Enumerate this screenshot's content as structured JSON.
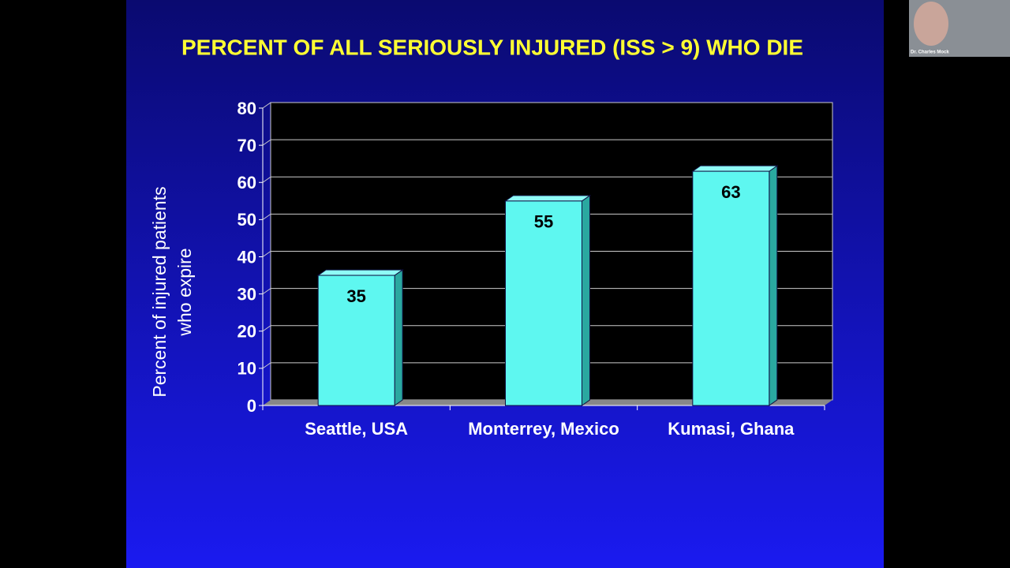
{
  "presenter": "Dr. Charles Mock",
  "chart_data": {
    "type": "bar",
    "title": "PERCENT OF ALL SERIOUSLY INJURED (ISS > 9) WHO DIE",
    "y_label": "Percent of injured patients\nwho expire",
    "categories": [
      "Seattle, USA",
      "Monterrey, Mexico",
      "Kumasi, Ghana"
    ],
    "values": [
      35,
      55,
      63
    ],
    "color": "#5ef7f0",
    "ylim": [
      0,
      80
    ],
    "yticks": [
      0,
      10,
      20,
      30,
      40,
      50,
      60,
      70,
      80
    ],
    "grid": true
  }
}
